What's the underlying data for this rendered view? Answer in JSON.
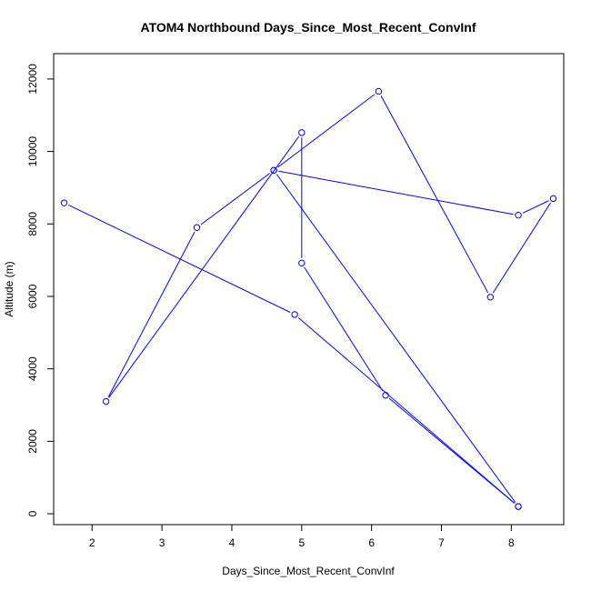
{
  "chart_data": {
    "type": "line",
    "title": "ATOM4 Northbound Days_Since_Most_Recent_ConvInf",
    "xlabel": "Days_Since_Most_Recent_ConvInf",
    "ylabel": "Altitude (m)",
    "xlim": [
      1.45,
      8.75
    ],
    "ylim": [
      -300,
      12700
    ],
    "x_ticks": [
      2,
      3,
      4,
      5,
      6,
      7,
      8
    ],
    "y_ticks": [
      0,
      2000,
      4000,
      6000,
      8000,
      10000,
      12000
    ],
    "grid": false,
    "legend": "none",
    "marker": "open-circle",
    "series": [
      {
        "color": "#0000ff",
        "points": [
          {
            "x": 8.1,
            "y": 200
          },
          {
            "x": 6.2,
            "y": 3270
          },
          {
            "x": 5.0,
            "y": 6920
          },
          {
            "x": 5.0,
            "y": 10520
          },
          {
            "x": 2.2,
            "y": 3100
          },
          {
            "x": 3.5,
            "y": 7900
          },
          {
            "x": 4.6,
            "y": 9480
          },
          {
            "x": 8.1,
            "y": 8240
          },
          {
            "x": 8.6,
            "y": 8700
          },
          {
            "x": 7.7,
            "y": 5980
          },
          {
            "x": 6.1,
            "y": 11660
          },
          {
            "x": 4.6,
            "y": 9480
          },
          {
            "x": 8.1,
            "y": 200
          },
          {
            "x": 4.9,
            "y": 5500
          },
          {
            "x": 1.6,
            "y": 8580
          }
        ]
      }
    ]
  }
}
